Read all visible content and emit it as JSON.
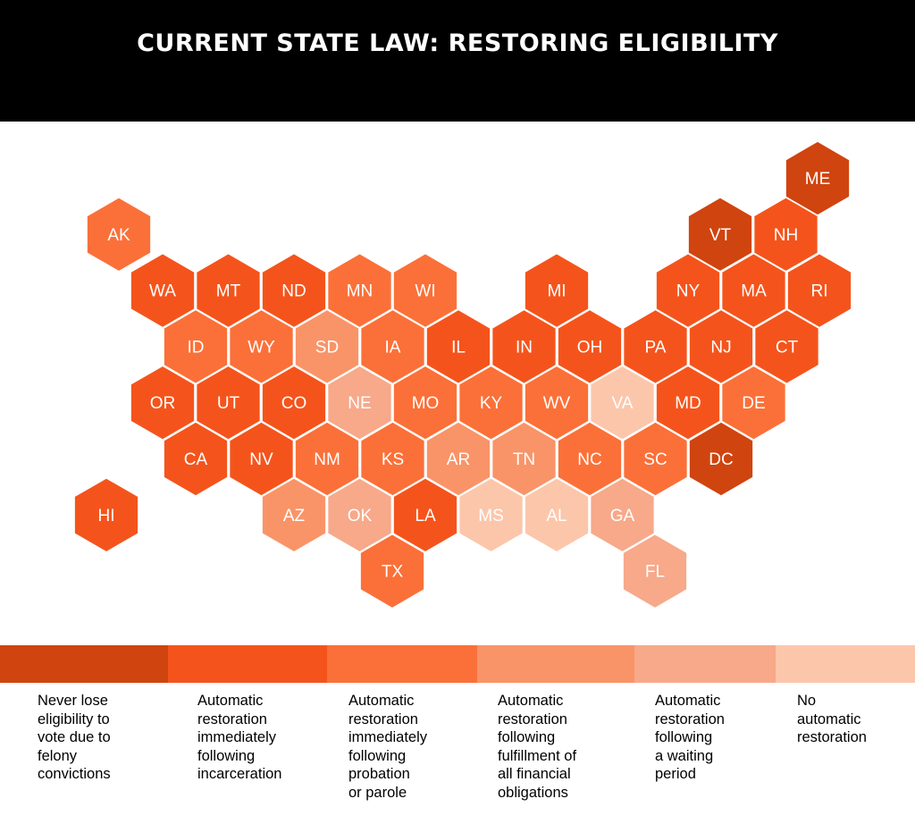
{
  "title": "CURRENT STATE LAW: RESTORING ELIGIBILITY",
  "colors": {
    "c0": "#d0440f",
    "c1": "#f4541c",
    "c2": "#fb7038",
    "c3": "#f99468",
    "c4": "#f7a98a",
    "c5": "#fcc6ab"
  },
  "categories": [
    {
      "id": "c0",
      "lines": [
        "Never lose",
        "eligibility to",
        "vote due to",
        "felony",
        "convictions"
      ]
    },
    {
      "id": "c1",
      "lines": [
        "Automatic",
        "restoration",
        "immediately",
        "following",
        "incarceration"
      ]
    },
    {
      "id": "c2",
      "lines": [
        "Automatic",
        "restoration",
        "immediately",
        "following",
        "probation",
        "or parole"
      ]
    },
    {
      "id": "c3",
      "lines": [
        "Automatic",
        "restoration",
        "following",
        "fulfillment of",
        "all financial",
        "obligations"
      ]
    },
    {
      "id": "c4",
      "lines": [
        "Automatic",
        "restoration",
        "following",
        "a waiting",
        "period"
      ]
    },
    {
      "id": "c5",
      "lines": [
        "No",
        "automatic",
        "restoration"
      ]
    }
  ],
  "states": [
    {
      "abbr": "ME",
      "row": 0,
      "col": 11,
      "cat": "c0"
    },
    {
      "abbr": "AK",
      "row": 1,
      "col": 0,
      "cat": "c2"
    },
    {
      "abbr": "VT",
      "row": 1,
      "col": 9,
      "cat": "c0"
    },
    {
      "abbr": "NH",
      "row": 1,
      "col": 10,
      "cat": "c1"
    },
    {
      "abbr": "WA",
      "row": 2,
      "col": 0,
      "cat": "c1"
    },
    {
      "abbr": "MT",
      "row": 2,
      "col": 1,
      "cat": "c1"
    },
    {
      "abbr": "ND",
      "row": 2,
      "col": 2,
      "cat": "c1"
    },
    {
      "abbr": "MN",
      "row": 2,
      "col": 3,
      "cat": "c2"
    },
    {
      "abbr": "WI",
      "row": 2,
      "col": 4,
      "cat": "c2"
    },
    {
      "abbr": "MI",
      "row": 2,
      "col": 6,
      "cat": "c1"
    },
    {
      "abbr": "NY",
      "row": 2,
      "col": 8,
      "cat": "c1"
    },
    {
      "abbr": "MA",
      "row": 2,
      "col": 9,
      "cat": "c1"
    },
    {
      "abbr": "RI",
      "row": 2,
      "col": 10,
      "cat": "c1"
    },
    {
      "abbr": "ID",
      "row": 3,
      "col": 0,
      "cat": "c2"
    },
    {
      "abbr": "WY",
      "row": 3,
      "col": 1,
      "cat": "c2"
    },
    {
      "abbr": "SD",
      "row": 3,
      "col": 2,
      "cat": "c3"
    },
    {
      "abbr": "IA",
      "row": 3,
      "col": 3,
      "cat": "c2"
    },
    {
      "abbr": "IL",
      "row": 3,
      "col": 4,
      "cat": "c1"
    },
    {
      "abbr": "IN",
      "row": 3,
      "col": 5,
      "cat": "c1"
    },
    {
      "abbr": "OH",
      "row": 3,
      "col": 6,
      "cat": "c1"
    },
    {
      "abbr": "PA",
      "row": 3,
      "col": 7,
      "cat": "c1"
    },
    {
      "abbr": "NJ",
      "row": 3,
      "col": 8,
      "cat": "c1"
    },
    {
      "abbr": "CT",
      "row": 3,
      "col": 9,
      "cat": "c1"
    },
    {
      "abbr": "OR",
      "row": 4,
      "col": 0,
      "cat": "c1"
    },
    {
      "abbr": "UT",
      "row": 4,
      "col": 1,
      "cat": "c1"
    },
    {
      "abbr": "CO",
      "row": 4,
      "col": 2,
      "cat": "c1"
    },
    {
      "abbr": "NE",
      "row": 4,
      "col": 3,
      "cat": "c4"
    },
    {
      "abbr": "MO",
      "row": 4,
      "col": 4,
      "cat": "c2"
    },
    {
      "abbr": "KY",
      "row": 4,
      "col": 5,
      "cat": "c2"
    },
    {
      "abbr": "WV",
      "row": 4,
      "col": 6,
      "cat": "c2"
    },
    {
      "abbr": "VA",
      "row": 4,
      "col": 7,
      "cat": "c5"
    },
    {
      "abbr": "MD",
      "row": 4,
      "col": 8,
      "cat": "c1"
    },
    {
      "abbr": "DE",
      "row": 4,
      "col": 9,
      "cat": "c2"
    },
    {
      "abbr": "CA",
      "row": 5,
      "col": 0,
      "cat": "c1"
    },
    {
      "abbr": "NV",
      "row": 5,
      "col": 1,
      "cat": "c1"
    },
    {
      "abbr": "NM",
      "row": 5,
      "col": 2,
      "cat": "c2"
    },
    {
      "abbr": "KS",
      "row": 5,
      "col": 3,
      "cat": "c2"
    },
    {
      "abbr": "AR",
      "row": 5,
      "col": 4,
      "cat": "c3"
    },
    {
      "abbr": "TN",
      "row": 5,
      "col": 5,
      "cat": "c3"
    },
    {
      "abbr": "NC",
      "row": 5,
      "col": 6,
      "cat": "c2"
    },
    {
      "abbr": "SC",
      "row": 5,
      "col": 7,
      "cat": "c2"
    },
    {
      "abbr": "DC",
      "row": 5,
      "col": 8,
      "cat": "c0"
    },
    {
      "abbr": "HI",
      "row": 6,
      "col": 0,
      "cat": "c1"
    },
    {
      "abbr": "AZ",
      "row": 6,
      "col": 3,
      "cat": "c3"
    },
    {
      "abbr": "OK",
      "row": 6,
      "col": 4,
      "cat": "c4"
    },
    {
      "abbr": "LA",
      "row": 6,
      "col": 5,
      "cat": "c1"
    },
    {
      "abbr": "MS",
      "row": 6,
      "col": 6,
      "cat": "c5"
    },
    {
      "abbr": "AL",
      "row": 6,
      "col": 7,
      "cat": "c5"
    },
    {
      "abbr": "GA",
      "row": 6,
      "col": 8,
      "cat": "c4"
    },
    {
      "abbr": "TX",
      "row": 7,
      "col": 4,
      "cat": "c2"
    },
    {
      "abbr": "FL",
      "row": 7,
      "col": 9,
      "cat": "c4"
    }
  ]
}
